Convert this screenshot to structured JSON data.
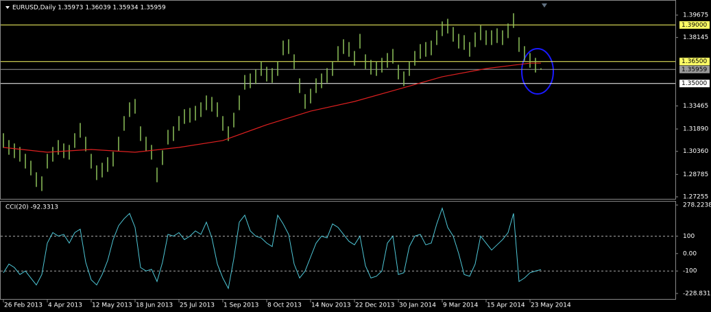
{
  "chart_data": [
    {
      "type": "ohlc",
      "title": "EURUSD,Daily  1.35973 1.36039 1.35934 1.35959",
      "categories": [
        "26 Feb 2013",
        null,
        null,
        null,
        null,
        null,
        null,
        null,
        "4 Apr 2013",
        null,
        null,
        null,
        null,
        null,
        null,
        null,
        "12 May 2013",
        null,
        null,
        null,
        null,
        null,
        null,
        null,
        "18 Jun 2013",
        null,
        null,
        null,
        null,
        null,
        null,
        null,
        "25 Jul 2013",
        null,
        null,
        null,
        null,
        null,
        null,
        null,
        "1 Sep 2013",
        null,
        null,
        null,
        null,
        null,
        null,
        null,
        "8 Oct 2013",
        null,
        null,
        null,
        null,
        null,
        null,
        null,
        "14 Nov 2013",
        null,
        null,
        null,
        null,
        null,
        null,
        null,
        "22 Dec 2013",
        null,
        null,
        null,
        null,
        null,
        null,
        null,
        "30 Jan 2014",
        null,
        null,
        null,
        null,
        null,
        null,
        null,
        "9 Mar 2014",
        null,
        null,
        null,
        null,
        null,
        null,
        null,
        "15 Apr 2014",
        null,
        null,
        null,
        null,
        null,
        null,
        null,
        "23 May 2014",
        null,
        null
      ],
      "color": "#8fc35a",
      "high": [
        1.316,
        1.3113,
        1.309,
        1.3066,
        1.3019,
        1.2972,
        1.2893,
        1.2865,
        1.3019,
        1.3066,
        1.3113,
        1.309,
        1.308,
        1.316,
        1.323,
        1.3136,
        1.3019,
        1.294,
        1.2958,
        1.2996,
        1.3033,
        1.3136,
        1.3277,
        1.3371,
        1.3394,
        1.3207,
        1.3136,
        1.308,
        1.2925,
        1.3043,
        1.3183,
        1.3207,
        1.3277,
        1.3324,
        1.3333,
        1.3347,
        1.3371,
        1.3418,
        1.3408,
        1.3371,
        1.3277,
        1.3207,
        1.33,
        1.3418,
        1.3558,
        1.3568,
        1.3596,
        1.3652,
        1.3614,
        1.3605,
        1.3652,
        1.3793,
        1.3802,
        1.3699,
        1.3535,
        1.3427,
        1.3464,
        1.3535,
        1.3568,
        1.3605,
        1.3652,
        1.3755,
        1.3802,
        1.3783,
        1.3722,
        1.3839,
        1.3699,
        1.3661,
        1.3652,
        1.3675,
        1.3708,
        1.3736,
        1.3628,
        1.3582,
        1.3652,
        1.3722,
        1.3769,
        1.3783,
        1.3793,
        1.3863,
        1.3924,
        1.3942,
        1.3886,
        1.3839,
        1.383,
        1.3783,
        1.3849,
        1.3896,
        1.3863,
        1.3863,
        1.3877,
        1.3863,
        1.391,
        1.398,
        1.3816,
        1.3755,
        1.3708,
        1.3675,
        1.3604
      ],
      "low": [
        1.306,
        1.3013,
        1.299,
        1.2966,
        1.2919,
        1.2872,
        1.2793,
        1.2765,
        1.2919,
        1.2966,
        1.3013,
        1.299,
        1.298,
        1.306,
        1.313,
        1.3036,
        1.2919,
        1.284,
        1.2858,
        1.2896,
        1.2933,
        1.3036,
        1.3177,
        1.3271,
        1.3294,
        1.3107,
        1.3036,
        1.298,
        1.2825,
        1.2943,
        1.3083,
        1.3107,
        1.3177,
        1.3224,
        1.3233,
        1.3247,
        1.3271,
        1.3318,
        1.3308,
        1.3271,
        1.3177,
        1.3107,
        1.32,
        1.3318,
        1.3458,
        1.3468,
        1.3496,
        1.3552,
        1.3514,
        1.3505,
        1.3552,
        1.3693,
        1.3702,
        1.3599,
        1.3435,
        1.3327,
        1.3364,
        1.3435,
        1.3468,
        1.3505,
        1.3552,
        1.3655,
        1.3702,
        1.3683,
        1.3622,
        1.3739,
        1.3599,
        1.3561,
        1.3552,
        1.3575,
        1.3608,
        1.3636,
        1.3528,
        1.3482,
        1.3552,
        1.3622,
        1.3669,
        1.3683,
        1.3693,
        1.3763,
        1.3824,
        1.3842,
        1.3786,
        1.3739,
        1.373,
        1.3683,
        1.3749,
        1.3796,
        1.3763,
        1.3763,
        1.3777,
        1.3763,
        1.381,
        1.388,
        1.3716,
        1.3655,
        1.3608,
        1.3575,
        1.3593
      ],
      "ma": {
        "color": "#e02020",
        "x": [
          0,
          8,
          16,
          24,
          32,
          40,
          48,
          56,
          64,
          72,
          80,
          88,
          96,
          98
        ],
        "values": [
          1.3063,
          1.303,
          1.3049,
          1.303,
          1.3063,
          1.311,
          1.3218,
          1.3311,
          1.3377,
          1.3461,
          1.3546,
          1.3602,
          1.3639,
          1.3639
        ]
      },
      "ylim": [
        1.27114,
        1.40706
      ],
      "yticks": [
        1.39675,
        1.38145,
        1.33465,
        {
          "value": 1.3189,
          "label": "1.31890"
        },
        {
          "value": 1.3036,
          "label": "1.30360"
        },
        1.28785,
        1.27255
      ],
      "levels": [
        {
          "value": 1.39,
          "label": "1.39000",
          "color": "#ffff66"
        },
        {
          "value": 1.365,
          "label": "1.36500",
          "color": "#ffff66"
        },
        {
          "value": 1.35959,
          "color": "#9a9a9a"
        },
        {
          "value": 1.35,
          "label": "1.35000",
          "color": "#ffffff"
        }
      ]
    },
    {
      "type": "line",
      "title": "CCI(20) -92.3313",
      "color": "#4fc8d8",
      "values": [
        -110,
        -60,
        -80,
        -120,
        -100,
        -140,
        -180,
        -120,
        60,
        120,
        100,
        110,
        60,
        120,
        140,
        -50,
        -150,
        -180,
        -120,
        -40,
        80,
        160,
        200,
        230,
        150,
        -80,
        -100,
        -90,
        -160,
        -50,
        110,
        100,
        120,
        80,
        100,
        130,
        110,
        180,
        90,
        -60,
        -140,
        -200,
        -30,
        180,
        220,
        130,
        100,
        90,
        60,
        40,
        220,
        170,
        110,
        -60,
        -140,
        -100,
        -20,
        60,
        100,
        90,
        170,
        150,
        110,
        70,
        50,
        100,
        -70,
        -140,
        -130,
        -100,
        60,
        100,
        -120,
        -110,
        40,
        100,
        110,
        50,
        60,
        170,
        260,
        150,
        100,
        0,
        -120,
        -130,
        -60,
        100,
        60,
        20,
        50,
        80,
        120,
        230,
        -160,
        -140,
        -110,
        -100,
        -92.3313
      ],
      "ylim": [
        -228.8311,
        278.2238
      ],
      "yticks": [
        278.2238,
        100,
        {
          "value": 0,
          "label": "0.00"
        },
        -100,
        -228.8311
      ]
    }
  ]
}
